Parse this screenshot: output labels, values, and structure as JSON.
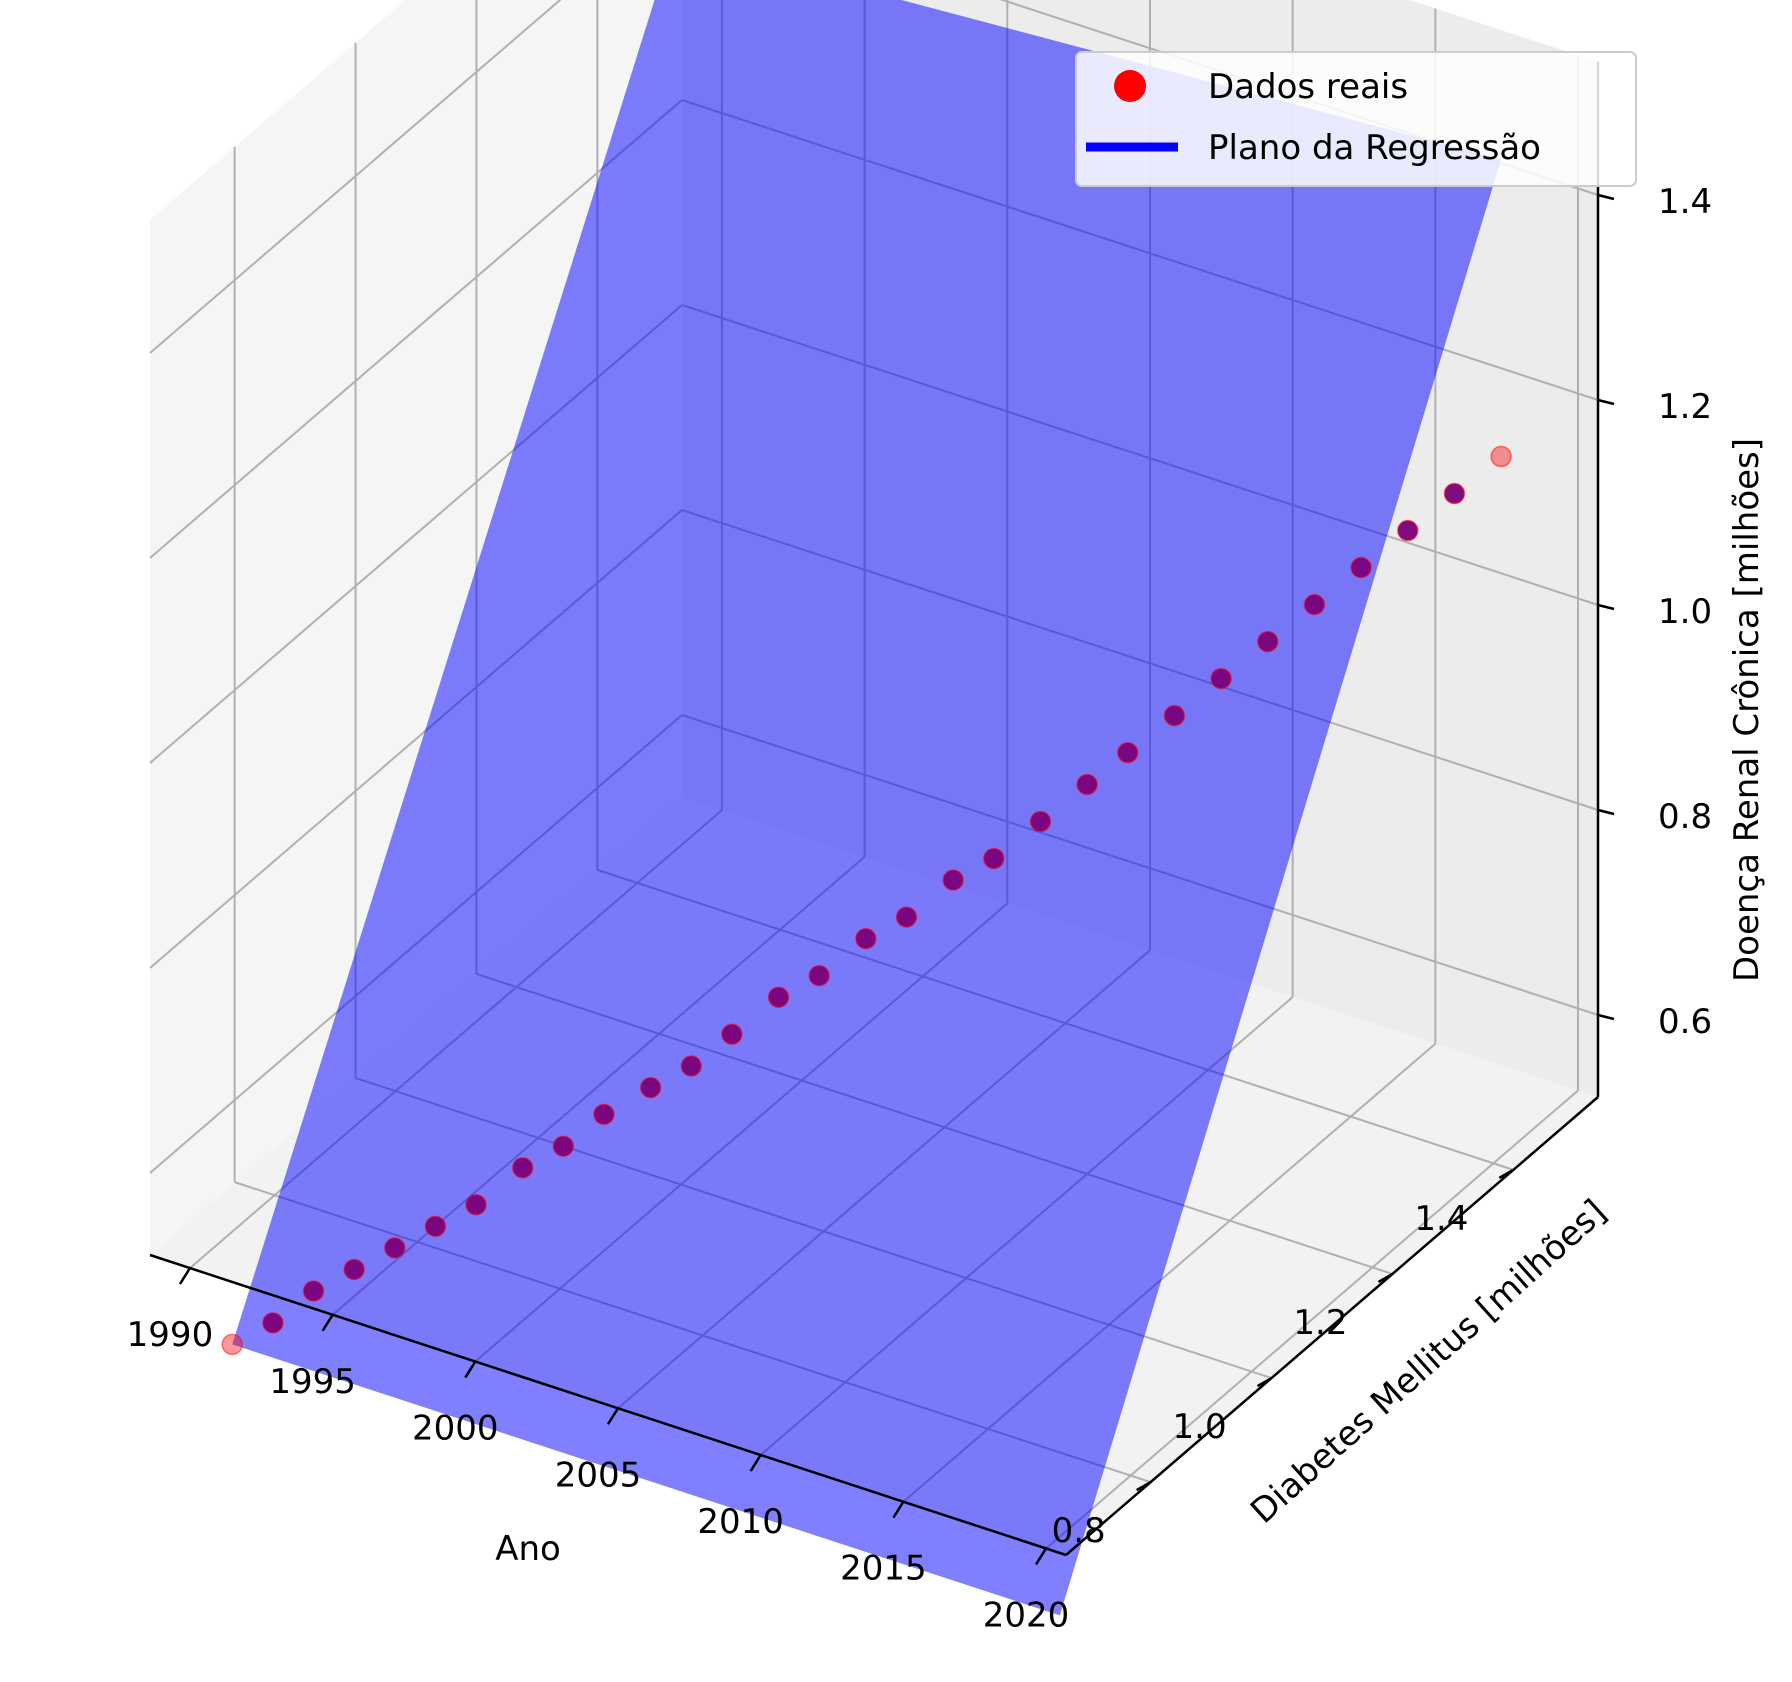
{
  "chart_data": {
    "type": "scatter",
    "projection": "3d",
    "xlabel": "Ano",
    "ylabel": "Diabetes Mellitus [milhões]",
    "zlabel": "Doença Renal Crônica [milhões]",
    "x_ticks": [
      "1990",
      "1995",
      "2000",
      "2005",
      "2010",
      "2015",
      "2020"
    ],
    "y_ticks": [
      "0.8",
      "1.0",
      "1.2",
      "1.4"
    ],
    "z_ticks": [
      "0.6",
      "0.8",
      "1.0",
      "1.2",
      "1.4"
    ],
    "grid": true,
    "legend_position": "top-right",
    "legend": [
      {
        "label": "Dados reais",
        "kind": "marker",
        "color": "#ff0000"
      },
      {
        "label": "Plano da Regressão",
        "kind": "line",
        "color": "#0000ff"
      }
    ],
    "series": [
      {
        "name": "Dados reais",
        "color": "#ff0000",
        "points": [
          {
            "year": 1990,
            "diabetes": 0.73,
            "renal": 0.41
          },
          {
            "year": 1991,
            "diabetes": 0.75,
            "renal": 0.43
          },
          {
            "year": 1992,
            "diabetes": 0.77,
            "renal": 0.46
          },
          {
            "year": 1993,
            "diabetes": 0.79,
            "renal": 0.48
          },
          {
            "year": 1994,
            "diabetes": 0.81,
            "renal": 0.5
          },
          {
            "year": 1995,
            "diabetes": 0.83,
            "renal": 0.52
          },
          {
            "year": 1996,
            "diabetes": 0.85,
            "renal": 0.54
          },
          {
            "year": 1997,
            "diabetes": 0.88,
            "renal": 0.57
          },
          {
            "year": 1998,
            "diabetes": 0.9,
            "renal": 0.59
          },
          {
            "year": 1999,
            "diabetes": 0.92,
            "renal": 0.62
          },
          {
            "year": 2000,
            "diabetes": 0.95,
            "renal": 0.64
          },
          {
            "year": 2001,
            "diabetes": 0.97,
            "renal": 0.66
          },
          {
            "year": 2002,
            "diabetes": 0.99,
            "renal": 0.69
          },
          {
            "year": 2003,
            "diabetes": 1.02,
            "renal": 0.72
          },
          {
            "year": 2004,
            "diabetes": 1.04,
            "renal": 0.74
          },
          {
            "year": 2005,
            "diabetes": 1.07,
            "renal": 0.77
          },
          {
            "year": 2006,
            "diabetes": 1.09,
            "renal": 0.79
          },
          {
            "year": 2007,
            "diabetes": 1.12,
            "renal": 0.82
          },
          {
            "year": 2008,
            "diabetes": 1.14,
            "renal": 0.84
          },
          {
            "year": 2009,
            "diabetes": 1.17,
            "renal": 0.87
          },
          {
            "year": 2010,
            "diabetes": 1.2,
            "renal": 0.9
          },
          {
            "year": 2011,
            "diabetes": 1.22,
            "renal": 0.93
          },
          {
            "year": 2012,
            "diabetes": 1.25,
            "renal": 0.96
          },
          {
            "year": 2013,
            "diabetes": 1.28,
            "renal": 0.99
          },
          {
            "year": 2014,
            "diabetes": 1.31,
            "renal": 1.02
          },
          {
            "year": 2015,
            "diabetes": 1.34,
            "renal": 1.05
          },
          {
            "year": 2016,
            "diabetes": 1.37,
            "renal": 1.08
          },
          {
            "year": 2017,
            "diabetes": 1.4,
            "renal": 1.11
          },
          {
            "year": 2018,
            "diabetes": 1.43,
            "renal": 1.14
          },
          {
            "year": 2019,
            "diabetes": 1.46,
            "renal": 1.17
          }
        ]
      }
    ],
    "regression_plane": {
      "name": "Plano da Regressão",
      "color": "#0000ff",
      "corners": [
        {
          "year": 1990,
          "diabetes": 0.73,
          "renal": 0.41
        },
        {
          "year": 2019,
          "diabetes": 0.73,
          "renal": 0.41
        },
        {
          "year": 2019,
          "diabetes": 1.46,
          "renal": 1.46
        },
        {
          "year": 1990,
          "diabetes": 1.46,
          "renal": 1.41
        }
      ]
    }
  }
}
